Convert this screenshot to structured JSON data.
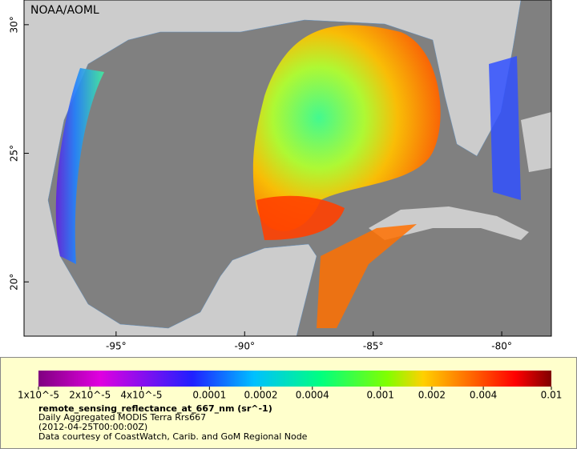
{
  "map": {
    "credit": "NOAA/AOML",
    "lon_axis": {
      "lim": [
        -98.58,
        -78.07
      ],
      "ticks": [
        {
          "value": -95,
          "label": "-95°"
        },
        {
          "value": -90,
          "label": "-90°"
        },
        {
          "value": -85,
          "label": "-85°"
        },
        {
          "value": -80,
          "label": "-80°"
        }
      ]
    },
    "lat_axis": {
      "lim": [
        17.89,
        30.96
      ],
      "ticks": [
        {
          "value": 20,
          "label": "20°"
        },
        {
          "value": 25,
          "label": "25°"
        },
        {
          "value": 30,
          "label": "30°"
        }
      ]
    }
  },
  "legend": {
    "title": "remote_sensing_reflectance_at_667_nm (sr^-1)",
    "lines": [
      "Daily Aggregated MODIS Terra Rrs667",
      "(2012-04-25T00:00:00Z)",
      "Data courtesy of CoastWatch, Carib. and GoM Regional Node"
    ],
    "scale": "log",
    "lim": [
      1e-05,
      0.01
    ],
    "ticks": [
      {
        "value": 1e-05,
        "label": "1x10^-5"
      },
      {
        "value": 2e-05,
        "label": "2x10^-5"
      },
      {
        "value": 4e-05,
        "label": "4x10^-5"
      },
      0.0001,
      0.0002,
      0.0004,
      0.001,
      0.002,
      0.004,
      0.01
    ]
  }
}
